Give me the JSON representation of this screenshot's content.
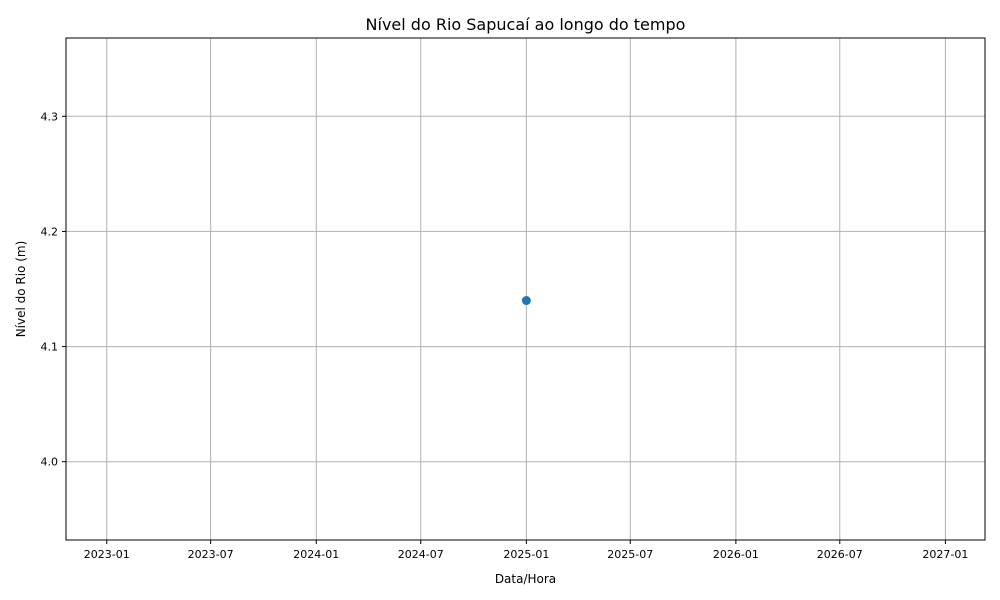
{
  "chart_data": {
    "type": "scatter",
    "title": "Nível do Rio Sapucaí ao longo do tempo",
    "xlabel": "Data/Hora",
    "ylabel": "Nível do Rio (m)",
    "x_ticks": [
      "2023-01",
      "2023-07",
      "2024-01",
      "2024-07",
      "2025-01",
      "2025-07",
      "2026-01",
      "2026-07",
      "2027-01"
    ],
    "y_ticks": [
      4.0,
      4.1,
      4.2,
      4.3
    ],
    "xlim": [
      "2022-10-22",
      "2027-03-11"
    ],
    "ylim": [
      3.932,
      4.368
    ],
    "grid": true,
    "colors": {
      "series": "#1f77b4",
      "grid": "#b0b0b0"
    },
    "points": [
      {
        "x": "2025-01-01",
        "y": 4.14
      }
    ]
  }
}
